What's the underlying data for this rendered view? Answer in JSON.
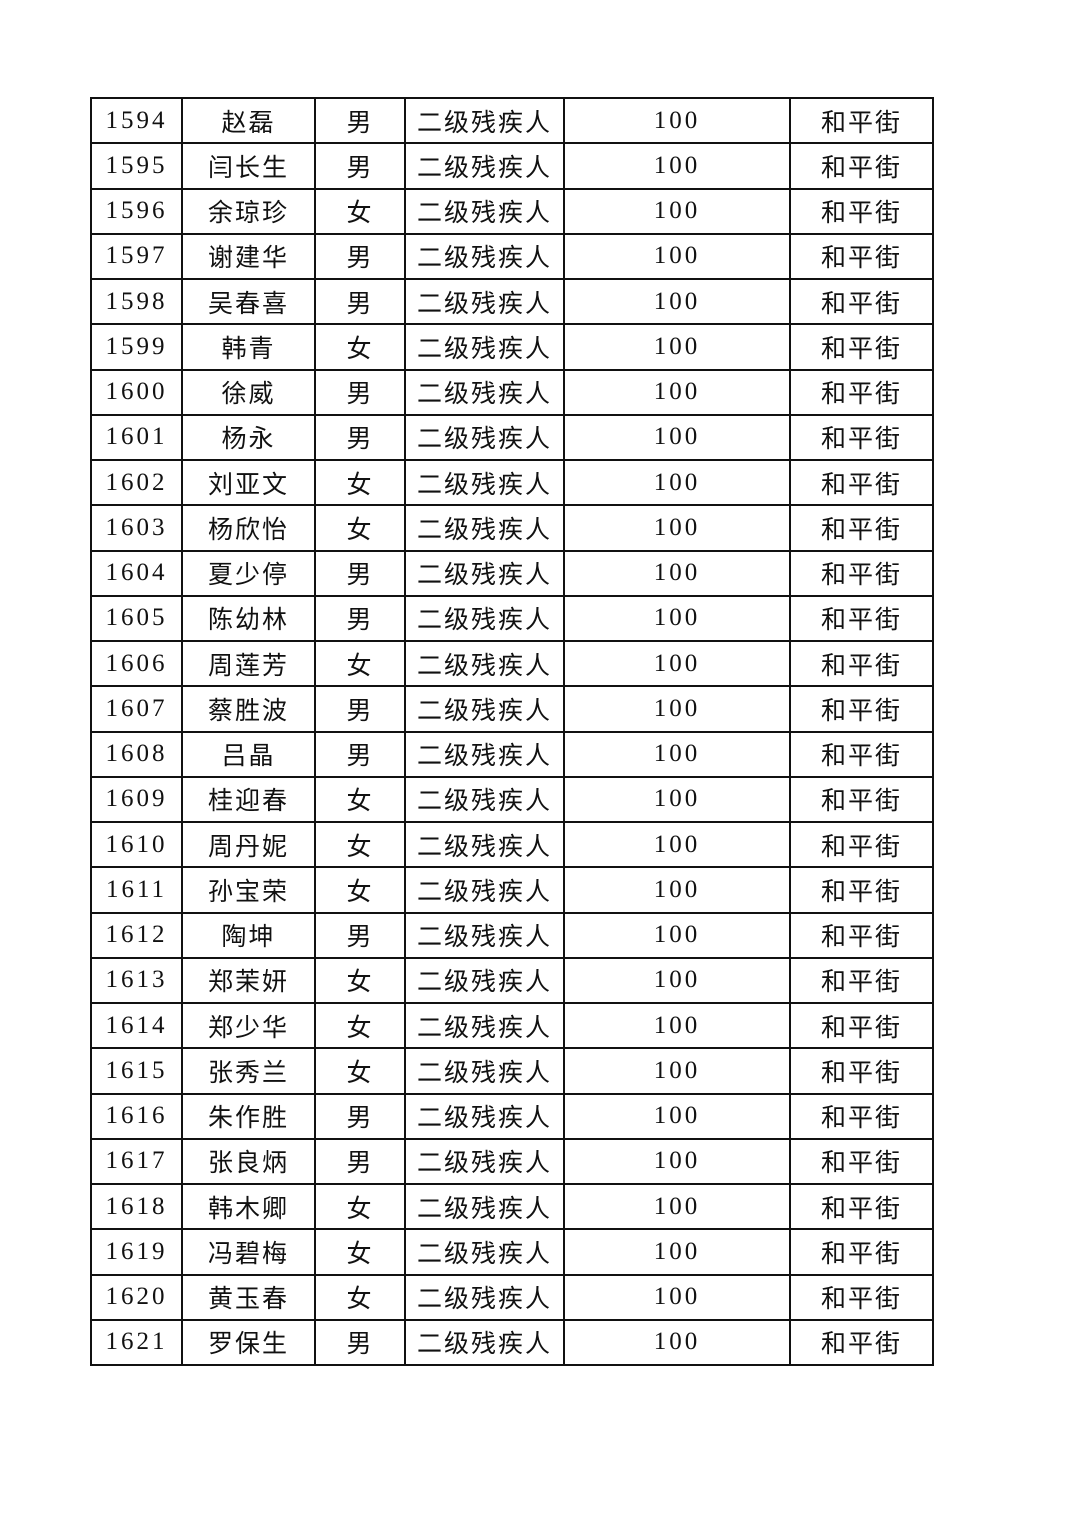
{
  "rows": [
    [
      "1594",
      "赵磊",
      "男",
      "二级残疾人",
      "100",
      "和平街"
    ],
    [
      "1595",
      "闫长生",
      "男",
      "二级残疾人",
      "100",
      "和平街"
    ],
    [
      "1596",
      "余琼珍",
      "女",
      "二级残疾人",
      "100",
      "和平街"
    ],
    [
      "1597",
      "谢建华",
      "男",
      "二级残疾人",
      "100",
      "和平街"
    ],
    [
      "1598",
      "吴春喜",
      "男",
      "二级残疾人",
      "100",
      "和平街"
    ],
    [
      "1599",
      "韩青",
      "女",
      "二级残疾人",
      "100",
      "和平街"
    ],
    [
      "1600",
      "徐威",
      "男",
      "二级残疾人",
      "100",
      "和平街"
    ],
    [
      "1601",
      "杨永",
      "男",
      "二级残疾人",
      "100",
      "和平街"
    ],
    [
      "1602",
      "刘亚文",
      "女",
      "二级残疾人",
      "100",
      "和平街"
    ],
    [
      "1603",
      "杨欣怡",
      "女",
      "二级残疾人",
      "100",
      "和平街"
    ],
    [
      "1604",
      "夏少停",
      "男",
      "二级残疾人",
      "100",
      "和平街"
    ],
    [
      "1605",
      "陈幼林",
      "男",
      "二级残疾人",
      "100",
      "和平街"
    ],
    [
      "1606",
      "周莲芳",
      "女",
      "二级残疾人",
      "100",
      "和平街"
    ],
    [
      "1607",
      "蔡胜波",
      "男",
      "二级残疾人",
      "100",
      "和平街"
    ],
    [
      "1608",
      "吕晶",
      "男",
      "二级残疾人",
      "100",
      "和平街"
    ],
    [
      "1609",
      "桂迎春",
      "女",
      "二级残疾人",
      "100",
      "和平街"
    ],
    [
      "1610",
      "周丹妮",
      "女",
      "二级残疾人",
      "100",
      "和平街"
    ],
    [
      "1611",
      "孙宝荣",
      "女",
      "二级残疾人",
      "100",
      "和平街"
    ],
    [
      "1612",
      "陶坤",
      "男",
      "二级残疾人",
      "100",
      "和平街"
    ],
    [
      "1613",
      "郑茉妍",
      "女",
      "二级残疾人",
      "100",
      "和平街"
    ],
    [
      "1614",
      "郑少华",
      "女",
      "二级残疾人",
      "100",
      "和平街"
    ],
    [
      "1615",
      "张秀兰",
      "女",
      "二级残疾人",
      "100",
      "和平街"
    ],
    [
      "1616",
      "朱作胜",
      "男",
      "二级残疾人",
      "100",
      "和平街"
    ],
    [
      "1617",
      "张良炳",
      "男",
      "二级残疾人",
      "100",
      "和平街"
    ],
    [
      "1618",
      "韩木卿",
      "女",
      "二级残疾人",
      "100",
      "和平街"
    ],
    [
      "1619",
      "冯碧梅",
      "女",
      "二级残疾人",
      "100",
      "和平街"
    ],
    [
      "1620",
      "黄玉春",
      "女",
      "二级残疾人",
      "100",
      "和平街"
    ],
    [
      "1621",
      "罗保生",
      "男",
      "二级残疾人",
      "100",
      "和平街"
    ]
  ]
}
